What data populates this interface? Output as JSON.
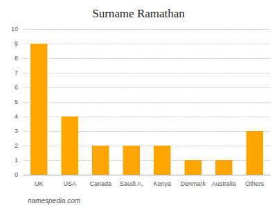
{
  "chart_data": {
    "type": "bar",
    "title": "Surname Ramathan",
    "categories": [
      "UK",
      "USA",
      "Canada",
      "Saudi A.",
      "Kenya",
      "Denmark",
      "Australia",
      "Others"
    ],
    "values": [
      9,
      4,
      2,
      2,
      2,
      1,
      1,
      3
    ],
    "color": "#FFA500",
    "ylim": [
      0,
      10
    ],
    "yticks": [
      0,
      1,
      2,
      3,
      4,
      5,
      6,
      7,
      8,
      9,
      10
    ],
    "grid": true,
    "annotations": [
      "namespedia.com"
    ]
  }
}
